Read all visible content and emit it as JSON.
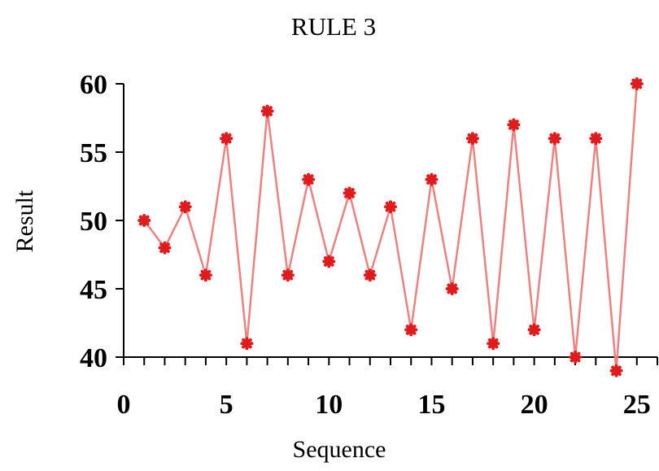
{
  "chart_data": {
    "type": "line",
    "title": "RULE 3",
    "xlabel": "Sequence",
    "ylabel": "Result",
    "xlim": [
      0,
      26
    ],
    "ylim": [
      40,
      60
    ],
    "xticks": [
      0,
      5,
      10,
      15,
      20,
      25
    ],
    "yticks": [
      40,
      45,
      50,
      55,
      60
    ],
    "grid": false,
    "legend": "none",
    "series": [
      {
        "color": "#e31a1c",
        "line_color": "#f08080",
        "x": [
          1,
          2,
          3,
          4,
          5,
          6,
          7,
          8,
          9,
          10,
          11,
          12,
          13,
          14,
          15,
          16,
          17,
          18,
          19,
          20,
          21,
          22,
          23,
          24,
          25
        ],
        "y": [
          50,
          48,
          51,
          46,
          56,
          41,
          58,
          46,
          53,
          47,
          52,
          46,
          51,
          42,
          53,
          45,
          56,
          41,
          57,
          42,
          56,
          40,
          56,
          39,
          60
        ]
      }
    ]
  }
}
